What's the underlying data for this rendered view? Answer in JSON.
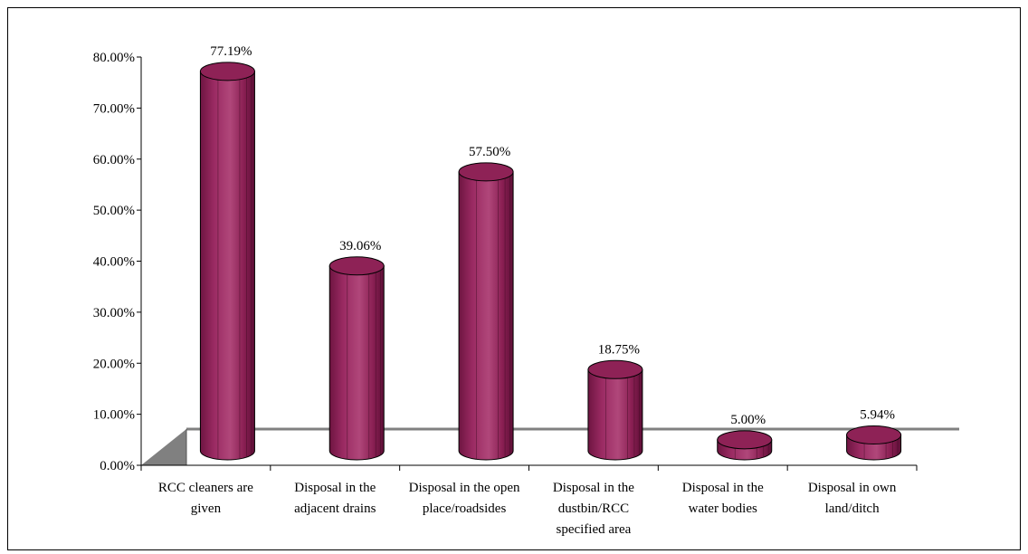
{
  "chart_data": {
    "type": "bar",
    "style": "3d-cylinder",
    "title": "",
    "xlabel": "",
    "ylabel": "",
    "ylim": [
      0,
      80
    ],
    "y_ticks": [
      "0.00%",
      "10.00%",
      "20.00%",
      "30.00%",
      "40.00%",
      "50.00%",
      "60.00%",
      "70.00%",
      "80.00%"
    ],
    "grid": false,
    "legend": "none",
    "categories": [
      [
        "RCC cleaners are",
        "given"
      ],
      [
        "Disposal in the",
        "adjacent drains"
      ],
      [
        "Disposal in the open",
        "place/roadsides"
      ],
      [
        "Disposal in the",
        "dustbin/RCC",
        "specified area"
      ],
      [
        "Disposal in the",
        "water bodies"
      ],
      [
        "Disposal in own",
        "land/ditch"
      ]
    ],
    "values": [
      77.19,
      39.06,
      57.5,
      18.75,
      5.0,
      5.94
    ],
    "data_labels": [
      "77.19%",
      "39.06%",
      "57.50%",
      "18.75%",
      "5.00%",
      "5.94%"
    ],
    "bar_color": "#8E2256",
    "floor_color": "#808080"
  }
}
